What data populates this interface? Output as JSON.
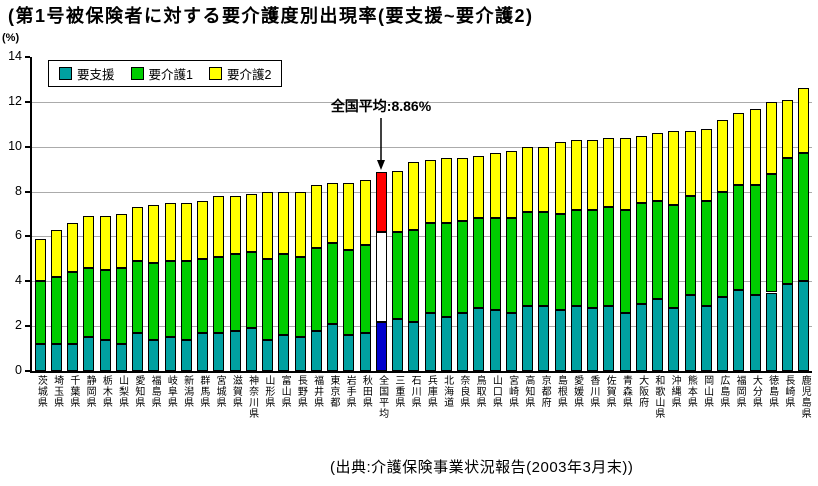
{
  "title": "(第1号被保険者に対する要介護度別出現率(要支援~要介護2)",
  "y_axis_unit": "(%)",
  "legend": {
    "items": [
      "要支援",
      "要介護1",
      "要介護2"
    ]
  },
  "annotation": {
    "text": "全国平均:8.86%",
    "target": "全国平均"
  },
  "source": "(出典:介護保険事業状況報告(2003年3月末))",
  "colors": {
    "series": [
      "#00A0A0",
      "#00CC00",
      "#FFFF00"
    ],
    "highlight_series": [
      "#0000CC",
      "#FFFFFF",
      "#FF0000"
    ],
    "grid": "#ABABAB",
    "axis": "#000000",
    "bar_border": "#000000",
    "background": "#FFFFFF"
  },
  "chart_data": {
    "type": "bar",
    "stacked": true,
    "title": "(第1号被保険者に対する要介護度別出現率(要支援~要介護2)",
    "ylabel": "(%)",
    "ylim": [
      0,
      14
    ],
    "yticks": [
      0,
      2,
      4,
      6,
      8,
      10,
      12,
      14
    ],
    "grid": true,
    "legend_position": "top-left-inside",
    "highlight_category": "全国平均",
    "annotations": [
      {
        "text": "全国平均:8.86%",
        "target": "全国平均",
        "value": 8.86
      }
    ],
    "categories": [
      "茨城県",
      "埼玉県",
      "千葉県",
      "静岡県",
      "栃木県",
      "山梨県",
      "愛知県",
      "福島県",
      "岐阜県",
      "新潟県",
      "群馬県",
      "宮城県",
      "滋賀県",
      "神奈川県",
      "山形県",
      "富山県",
      "長野県",
      "福井県",
      "東京都",
      "岩手県",
      "秋田県",
      "全国平均",
      "三重県",
      "石川県",
      "兵庫県",
      "北海道",
      "奈良県",
      "鳥取県",
      "山口県",
      "宮崎県",
      "高知県",
      "京都府",
      "島根県",
      "愛媛県",
      "香川県",
      "佐賀県",
      "青森県",
      "大阪府",
      "和歌山県",
      "沖縄県",
      "熊本県",
      "岡山県",
      "広島県",
      "福岡県",
      "大分県",
      "徳島県",
      "長崎県",
      "鹿児島県"
    ],
    "series": [
      {
        "name": "要支援",
        "values": [
          1.2,
          1.2,
          1.2,
          1.5,
          1.4,
          1.2,
          1.7,
          1.4,
          1.5,
          1.4,
          1.7,
          1.7,
          1.8,
          1.9,
          1.4,
          1.6,
          1.5,
          1.8,
          2.1,
          1.6,
          1.7,
          2.2,
          2.3,
          2.2,
          2.6,
          2.4,
          2.6,
          2.8,
          2.7,
          2.6,
          2.9,
          2.9,
          2.7,
          2.9,
          2.8,
          2.9,
          2.6,
          3.0,
          3.2,
          2.8,
          3.4,
          2.9,
          3.3,
          3.6,
          3.4,
          3.5,
          3.9,
          4.0
        ]
      },
      {
        "name": "要介護1",
        "values": [
          2.8,
          3.0,
          3.2,
          3.1,
          3.1,
          3.4,
          3.2,
          3.4,
          3.4,
          3.5,
          3.3,
          3.4,
          3.4,
          3.4,
          3.6,
          3.6,
          3.6,
          3.7,
          3.6,
          3.8,
          3.9,
          4.0,
          3.9,
          4.1,
          4.0,
          4.2,
          4.1,
          4.0,
          4.1,
          4.2,
          4.2,
          4.2,
          4.3,
          4.3,
          4.4,
          4.4,
          4.6,
          4.5,
          4.4,
          4.6,
          4.4,
          4.7,
          4.7,
          4.7,
          4.9,
          5.3,
          5.6,
          5.7
        ]
      },
      {
        "name": "要介護2",
        "values": [
          1.9,
          2.1,
          2.2,
          2.3,
          2.4,
          2.4,
          2.4,
          2.6,
          2.6,
          2.6,
          2.6,
          2.7,
          2.6,
          2.6,
          3.0,
          2.8,
          2.9,
          2.8,
          2.7,
          3.0,
          2.9,
          2.66,
          2.7,
          3.0,
          2.8,
          2.9,
          2.8,
          2.8,
          2.9,
          3.0,
          2.9,
          2.9,
          3.2,
          3.1,
          3.1,
          3.1,
          3.2,
          3.0,
          3.0,
          3.3,
          2.9,
          3.2,
          3.2,
          3.2,
          3.4,
          3.2,
          2.6,
          2.9
        ]
      }
    ]
  }
}
